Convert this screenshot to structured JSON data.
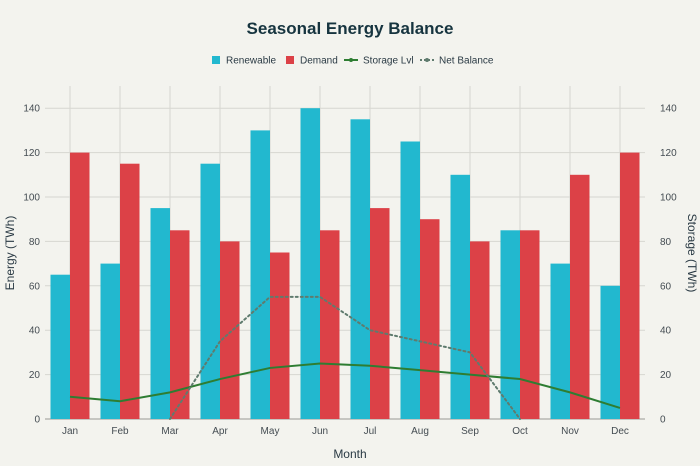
{
  "chart_data": {
    "type": "bar",
    "title": "Seasonal Energy Balance",
    "xlabel": "Month",
    "ylabel": "Energy (TWh)",
    "y2label": "Storage (TWh)",
    "ylim": [
      0,
      150
    ],
    "y2lim": [
      0,
      150
    ],
    "yticks": [
      0,
      20,
      40,
      60,
      80,
      100,
      120,
      140
    ],
    "grid": true,
    "legend_position": "top-center",
    "categories": [
      "Jan",
      "Feb",
      "Mar",
      "Apr",
      "May",
      "Jun",
      "Jul",
      "Aug",
      "Sep",
      "Oct",
      "Nov",
      "Dec"
    ],
    "series": [
      {
        "name": "Renewable",
        "type": "bar",
        "axis": "left",
        "color": "#22b8cf",
        "values": [
          65,
          70,
          95,
          115,
          130,
          140,
          135,
          125,
          110,
          85,
          70,
          60
        ]
      },
      {
        "name": "Demand",
        "type": "bar",
        "axis": "left",
        "color": "#dc4147",
        "values": [
          120,
          115,
          85,
          80,
          75,
          85,
          95,
          90,
          80,
          85,
          110,
          120
        ]
      },
      {
        "name": "Storage Lvl",
        "type": "line",
        "axis": "right",
        "color": "#2e7d32",
        "values": [
          10,
          8,
          12,
          18,
          23,
          25,
          24,
          22,
          20,
          18,
          12,
          5
        ]
      },
      {
        "name": "Net Balance",
        "type": "line",
        "style": "dotted",
        "axis": "right",
        "color": "#5f7b6e",
        "values": [
          null,
          null,
          0,
          35,
          55,
          55,
          40,
          35,
          30,
          0,
          null,
          null
        ]
      }
    ]
  }
}
